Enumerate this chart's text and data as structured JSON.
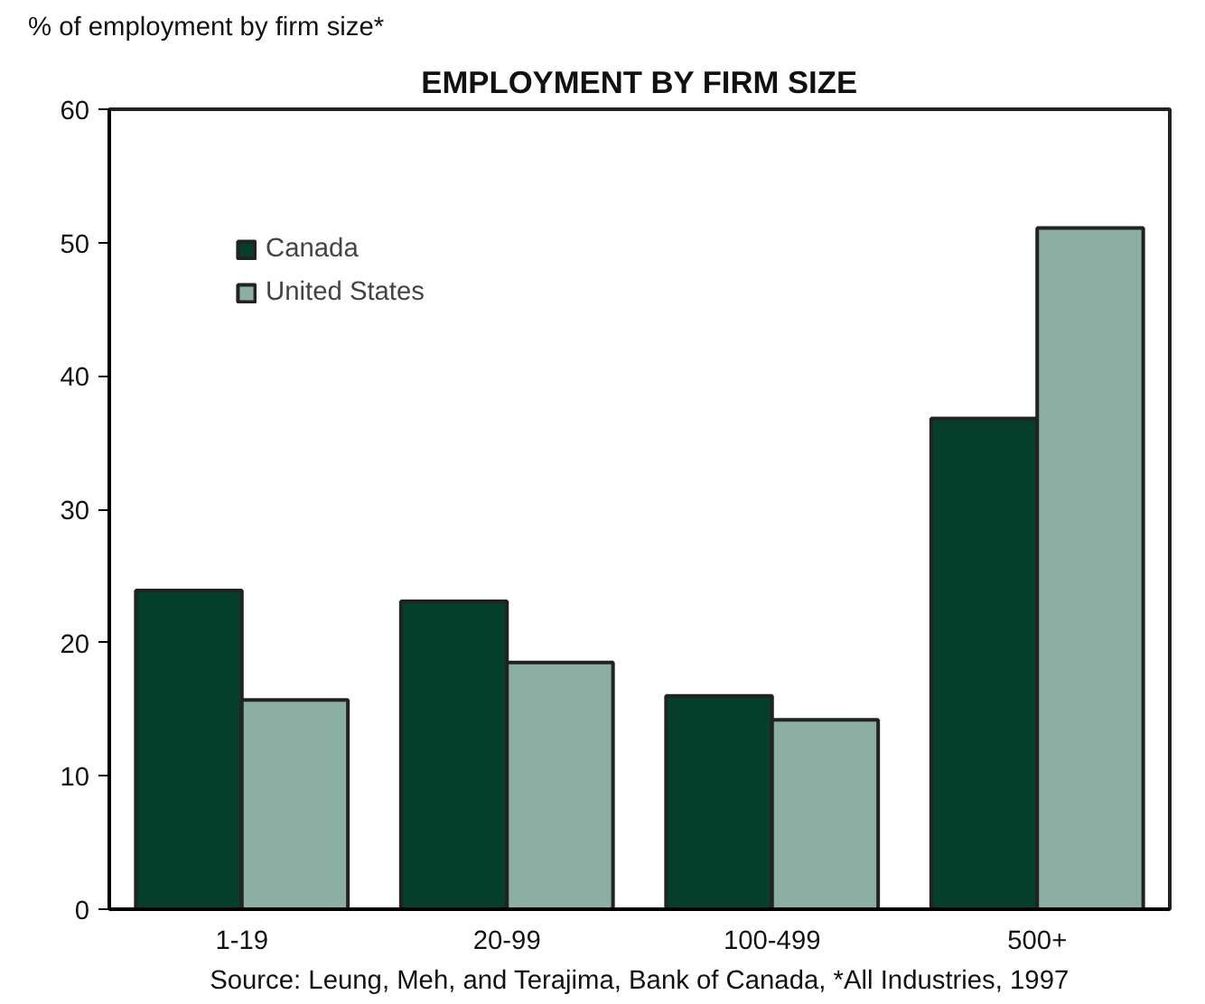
{
  "chart_data": {
    "type": "bar",
    "title": "EMPLOYMENT BY FIRM SIZE",
    "ylabel": "% of employment by firm size*",
    "categories": [
      "1-19",
      "20-99",
      "100-499",
      "500+"
    ],
    "series": [
      {
        "name": "Canada",
        "color": "#053f2c",
        "values": [
          23.9,
          23.1,
          16.0,
          36.8
        ]
      },
      {
        "name": "United States",
        "color": "#8bafa3",
        "values": [
          15.7,
          18.5,
          14.2,
          51.1
        ]
      }
    ],
    "ylim": [
      0,
      60
    ],
    "yticks": [
      0,
      10,
      20,
      30,
      40,
      50,
      60
    ],
    "grid": false,
    "legend": "top left",
    "annotations": [
      "Source: Leung, Meh, and Terajima, Bank of Canada, *All Industries, 1997"
    ]
  }
}
